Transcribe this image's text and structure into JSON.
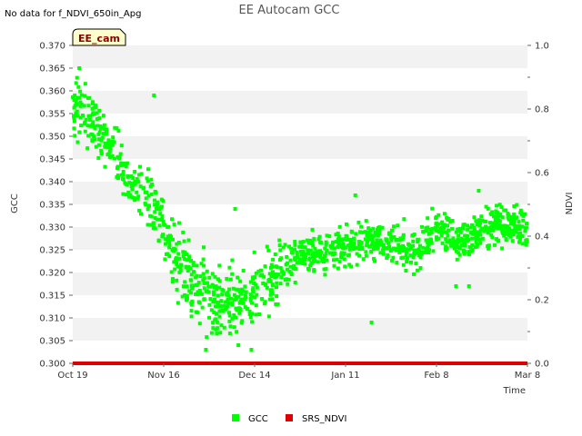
{
  "chart_data": {
    "type": "scatter",
    "title": "EE Autocam GCC",
    "no_data_note": "No data for f_NDVI_650in_Apg",
    "site_tag": "EE_cam",
    "xlabel": "Time",
    "ylabel_left": "GCC",
    "ylabel_right": "NDVI",
    "x_range_days": [
      0,
      140
    ],
    "x_ticks": [
      {
        "day": 0,
        "label": "Oct 19"
      },
      {
        "day": 28,
        "label": "Nov 16"
      },
      {
        "day": 56,
        "label": "Dec 14"
      },
      {
        "day": 84,
        "label": "Jan 11"
      },
      {
        "day": 112,
        "label": "Feb 8"
      },
      {
        "day": 140,
        "label": "Mar 8"
      }
    ],
    "ylim_left": [
      0.3,
      0.37
    ],
    "y_ticks_left": [
      "0.300",
      "0.305",
      "0.310",
      "0.315",
      "0.320",
      "0.325",
      "0.330",
      "0.335",
      "0.340",
      "0.345",
      "0.350",
      "0.355",
      "0.360",
      "0.365",
      "0.370"
    ],
    "ylim_right": [
      0.0,
      1.0
    ],
    "y_ticks_right": [
      "0.0",
      "0.2",
      "0.4",
      "0.6",
      "0.8",
      "1.0"
    ],
    "legend_position": "bottom-center",
    "series": [
      {
        "name": "GCC",
        "color": "#00ff00",
        "marker": "square",
        "profile": [
          {
            "day": 0,
            "value": 0.357
          },
          {
            "day": 4,
            "value": 0.354
          },
          {
            "day": 8,
            "value": 0.352
          },
          {
            "day": 12,
            "value": 0.347
          },
          {
            "day": 15,
            "value": 0.344
          },
          {
            "day": 18,
            "value": 0.339
          },
          {
            "day": 22,
            "value": 0.336
          },
          {
            "day": 26,
            "value": 0.333
          },
          {
            "day": 30,
            "value": 0.325
          },
          {
            "day": 34,
            "value": 0.321
          },
          {
            "day": 38,
            "value": 0.317
          },
          {
            "day": 42,
            "value": 0.314
          },
          {
            "day": 48,
            "value": 0.313
          },
          {
            "day": 54,
            "value": 0.315
          },
          {
            "day": 60,
            "value": 0.317
          },
          {
            "day": 64,
            "value": 0.32
          },
          {
            "day": 70,
            "value": 0.324
          },
          {
            "day": 78,
            "value": 0.324
          },
          {
            "day": 84,
            "value": 0.326
          },
          {
            "day": 92,
            "value": 0.327
          },
          {
            "day": 100,
            "value": 0.326
          },
          {
            "day": 106,
            "value": 0.325
          },
          {
            "day": 112,
            "value": 0.33
          },
          {
            "day": 120,
            "value": 0.327
          },
          {
            "day": 126,
            "value": 0.33
          },
          {
            "day": 132,
            "value": 0.331
          },
          {
            "day": 140,
            "value": 0.329
          }
        ],
        "outliers": [
          {
            "day": 2,
            "value": 0.365
          },
          {
            "day": 25,
            "value": 0.359
          },
          {
            "day": 41,
            "value": 0.303
          },
          {
            "day": 50,
            "value": 0.334
          },
          {
            "day": 51,
            "value": 0.304
          },
          {
            "day": 55,
            "value": 0.303
          },
          {
            "day": 87,
            "value": 0.337
          },
          {
            "day": 92,
            "value": 0.309
          },
          {
            "day": 118,
            "value": 0.317
          },
          {
            "day": 122,
            "value": 0.317
          },
          {
            "day": 125,
            "value": 0.338
          }
        ]
      },
      {
        "name": "SRS_NDVI",
        "color": "#dd0000",
        "marker": "square",
        "values_ndvi": [
          0.0
        ],
        "day_range": [
          0,
          140
        ]
      }
    ]
  }
}
